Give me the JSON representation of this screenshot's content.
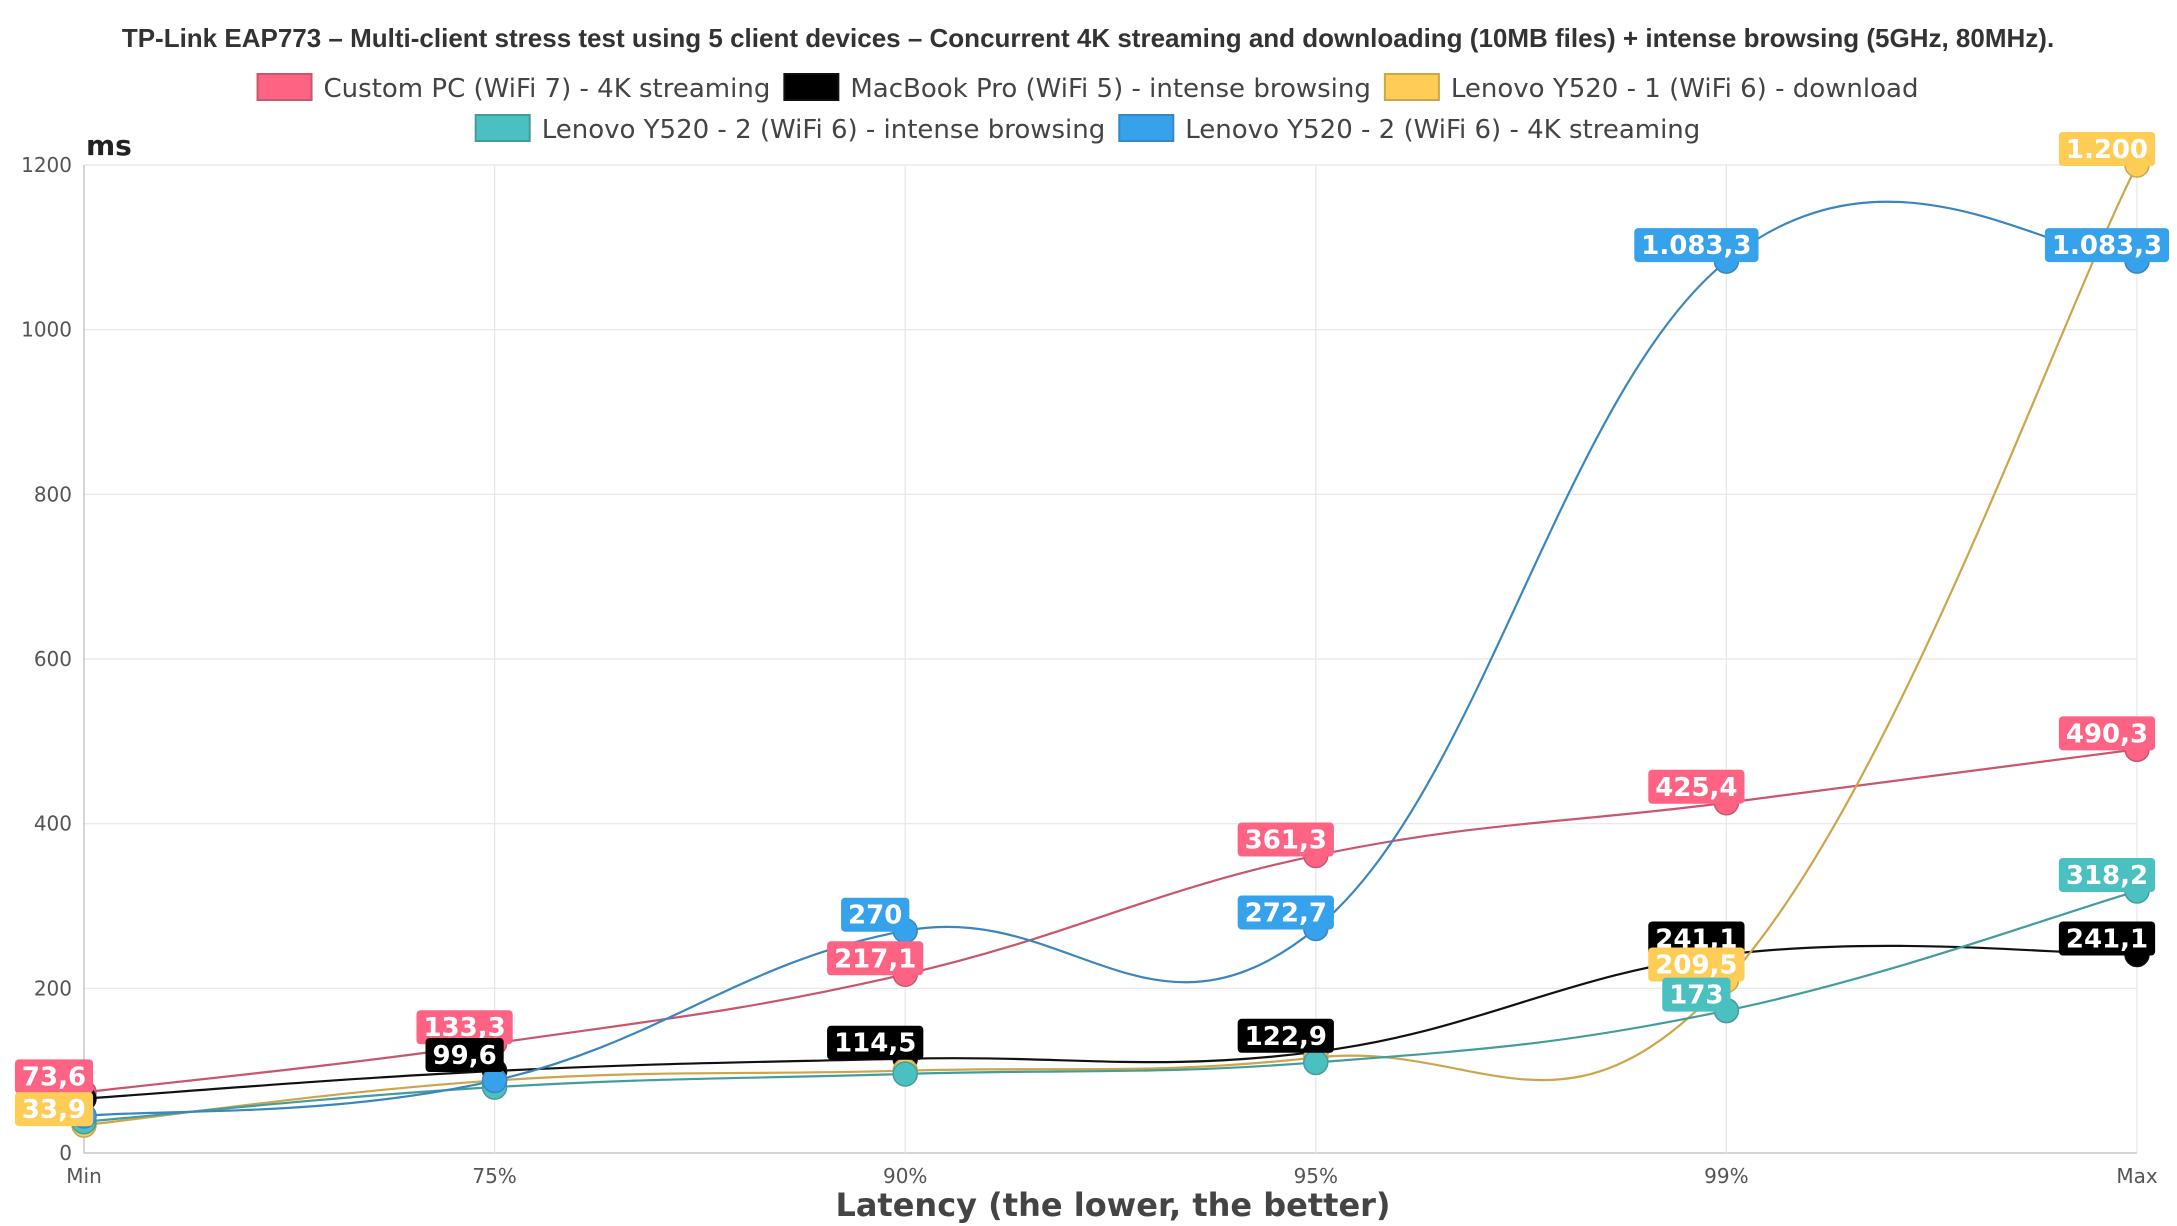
{
  "chart_data": {
    "type": "line",
    "title": "TP-Link EAP773 – Multi-client stress test using 5 client devices – Concurrent 4K streaming and downloading (10MB files) + intense browsing (5GHz, 80MHz).",
    "xlabel": "Latency (the lower, the better)",
    "ylabel": "ms",
    "categories": [
      "Min",
      "75%",
      "90%",
      "95%",
      "99%",
      "Max"
    ],
    "ylim": [
      0,
      1200
    ],
    "yticks": [
      "0",
      "200",
      "400",
      "600",
      "800",
      "1000",
      "1200"
    ],
    "grid": true,
    "legend_position": "top",
    "series": [
      {
        "name": "Custom PC (WiFi 7) - 4K streaming",
        "color": "#ff6384",
        "line_color": "#c8566d",
        "values": [
          73.6,
          133.3,
          217.1,
          361.3,
          425.4,
          490.3
        ],
        "labels": [
          "73,6",
          "133,3",
          "217,1",
          "361,3",
          "425,4",
          "490,3"
        ]
      },
      {
        "name": "MacBook Pro (WiFi 5) - intense browsing",
        "color": "#000000",
        "line_color": "#111111",
        "values": [
          66,
          99.6,
          114.5,
          122.9,
          241.1,
          241.1
        ],
        "labels": [
          "",
          "99,6",
          "114,5",
          "122,9",
          "241,1",
          "241,1"
        ]
      },
      {
        "name": "Lenovo Y520 - 1 (WiFi 6) - download",
        "color": "#ffcd56",
        "line_color": "#cda54a",
        "values": [
          33.9,
          88,
          100,
          116,
          209.5,
          1200
        ],
        "labels": [
          "33,9",
          "",
          "",
          "",
          "209,5",
          "1.200"
        ]
      },
      {
        "name": "Lenovo Y520 - 2 (WiFi 6) - intense browsing",
        "color": "#4bc0c0",
        "line_color": "#449d9d",
        "values": [
          38,
          80,
          96,
          110,
          173,
          318.2
        ],
        "labels": [
          "",
          "",
          "",
          "",
          "173",
          "318,2"
        ]
      },
      {
        "name": "Lenovo Y520 - 2 (WiFi 6) - 4K streaming",
        "color": "#36a2eb",
        "line_color": "#3a86bf",
        "values": [
          45,
          88,
          270,
          272.7,
          1083.3,
          1083.3
        ],
        "labels": [
          "",
          "",
          "270",
          "272,7",
          "1.083,3",
          "1.083,3"
        ]
      }
    ]
  }
}
